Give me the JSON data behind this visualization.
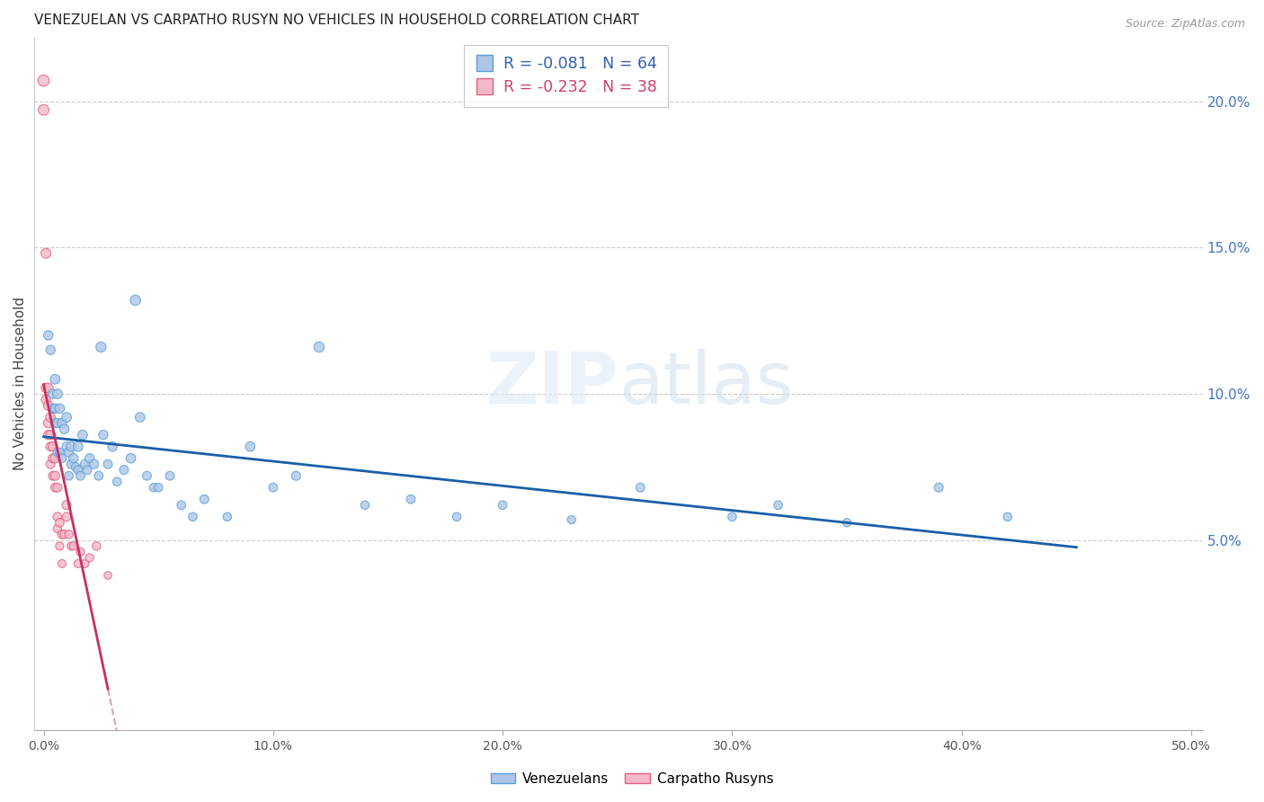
{
  "title": "VENEZUELAN VS CARPATHO RUSYN NO VEHICLES IN HOUSEHOLD CORRELATION CHART",
  "source": "Source: ZipAtlas.com",
  "ylabel": "No Vehicles in Household",
  "right_yticks": [
    "5.0%",
    "10.0%",
    "15.0%",
    "20.0%"
  ],
  "right_ytick_vals": [
    0.05,
    0.1,
    0.15,
    0.2
  ],
  "watermark": "ZIPatlas",
  "legend_r1": "R = -0.081",
  "legend_n1": "N = 64",
  "legend_r2": "R = -0.232",
  "legend_n2": "N = 38",
  "legend_label1": "Venezuelans",
  "legend_label2": "Carpatho Rusyns",
  "venezuelan_color": "#aec6e8",
  "venezuelan_edge": "#5a9fd4",
  "carpatho_color": "#f4b8c8",
  "carpatho_edge": "#e06080",
  "trendline_venezuelan": "#1a5fa8",
  "trendline_carpatho": "#c83060",
  "trendline_carpatho_dash": "#e0a0b0",
  "background": "#ffffff",
  "grid_color": "#cccccc",
  "venezuelan_x": [
    0.002,
    0.003,
    0.004,
    0.004,
    0.005,
    0.005,
    0.005,
    0.006,
    0.006,
    0.006,
    0.007,
    0.007,
    0.008,
    0.008,
    0.009,
    0.01,
    0.01,
    0.011,
    0.011,
    0.012,
    0.012,
    0.013,
    0.014,
    0.015,
    0.015,
    0.016,
    0.017,
    0.018,
    0.019,
    0.02,
    0.022,
    0.024,
    0.025,
    0.026,
    0.028,
    0.03,
    0.032,
    0.035,
    0.038,
    0.04,
    0.042,
    0.045,
    0.048,
    0.05,
    0.055,
    0.06,
    0.065,
    0.07,
    0.08,
    0.09,
    0.1,
    0.11,
    0.12,
    0.14,
    0.16,
    0.18,
    0.2,
    0.23,
    0.26,
    0.3,
    0.32,
    0.35,
    0.39,
    0.42
  ],
  "venezuelan_y": [
    0.12,
    0.115,
    0.1,
    0.095,
    0.105,
    0.095,
    0.09,
    0.1,
    0.09,
    0.08,
    0.095,
    0.08,
    0.09,
    0.078,
    0.088,
    0.092,
    0.082,
    0.08,
    0.072,
    0.082,
    0.076,
    0.078,
    0.075,
    0.082,
    0.074,
    0.072,
    0.086,
    0.076,
    0.074,
    0.078,
    0.076,
    0.072,
    0.116,
    0.086,
    0.076,
    0.082,
    0.07,
    0.074,
    0.078,
    0.132,
    0.092,
    0.072,
    0.068,
    0.068,
    0.072,
    0.062,
    0.058,
    0.064,
    0.058,
    0.082,
    0.068,
    0.072,
    0.116,
    0.062,
    0.064,
    0.058,
    0.062,
    0.057,
    0.068,
    0.058,
    0.062,
    0.056,
    0.068,
    0.058
  ],
  "venezuelan_sizes": [
    55,
    55,
    55,
    50,
    60,
    55,
    50,
    60,
    55,
    48,
    58,
    48,
    58,
    48,
    58,
    60,
    55,
    55,
    48,
    58,
    52,
    55,
    50,
    60,
    50,
    50,
    58,
    52,
    50,
    55,
    52,
    50,
    65,
    55,
    50,
    58,
    48,
    52,
    58,
    68,
    58,
    50,
    48,
    48,
    50,
    48,
    46,
    50,
    46,
    58,
    50,
    52,
    68,
    46,
    48,
    46,
    48,
    44,
    50,
    46,
    48,
    44,
    52,
    46
  ],
  "carpatho_x": [
    0.0,
    0.0,
    0.001,
    0.001,
    0.001,
    0.002,
    0.002,
    0.002,
    0.002,
    0.003,
    0.003,
    0.003,
    0.003,
    0.004,
    0.004,
    0.004,
    0.005,
    0.005,
    0.005,
    0.006,
    0.006,
    0.006,
    0.007,
    0.007,
    0.008,
    0.008,
    0.009,
    0.01,
    0.01,
    0.011,
    0.012,
    0.013,
    0.015,
    0.016,
    0.018,
    0.02,
    0.023,
    0.028
  ],
  "carpatho_y": [
    0.207,
    0.197,
    0.148,
    0.102,
    0.098,
    0.102,
    0.096,
    0.09,
    0.086,
    0.092,
    0.086,
    0.082,
    0.076,
    0.082,
    0.078,
    0.072,
    0.078,
    0.072,
    0.068,
    0.068,
    0.058,
    0.054,
    0.056,
    0.048,
    0.052,
    0.042,
    0.052,
    0.062,
    0.058,
    0.052,
    0.048,
    0.048,
    0.042,
    0.046,
    0.042,
    0.044,
    0.048,
    0.038
  ],
  "carpatho_sizes": [
    82,
    72,
    62,
    56,
    56,
    62,
    56,
    56,
    52,
    58,
    56,
    52,
    50,
    56,
    52,
    48,
    56,
    52,
    48,
    52,
    48,
    44,
    48,
    44,
    48,
    42,
    48,
    52,
    48,
    44,
    42,
    42,
    42,
    44,
    42,
    44,
    46,
    38
  ],
  "xmin": -0.004,
  "xmax": 0.505,
  "ymin": -0.015,
  "ymax": 0.222,
  "xticks": [
    0.0,
    0.1,
    0.2,
    0.3,
    0.4,
    0.5
  ],
  "xtick_labels": [
    "0.0%",
    "10.0%",
    "20.0%",
    "30.0%",
    "40.0%",
    "50.0%"
  ]
}
